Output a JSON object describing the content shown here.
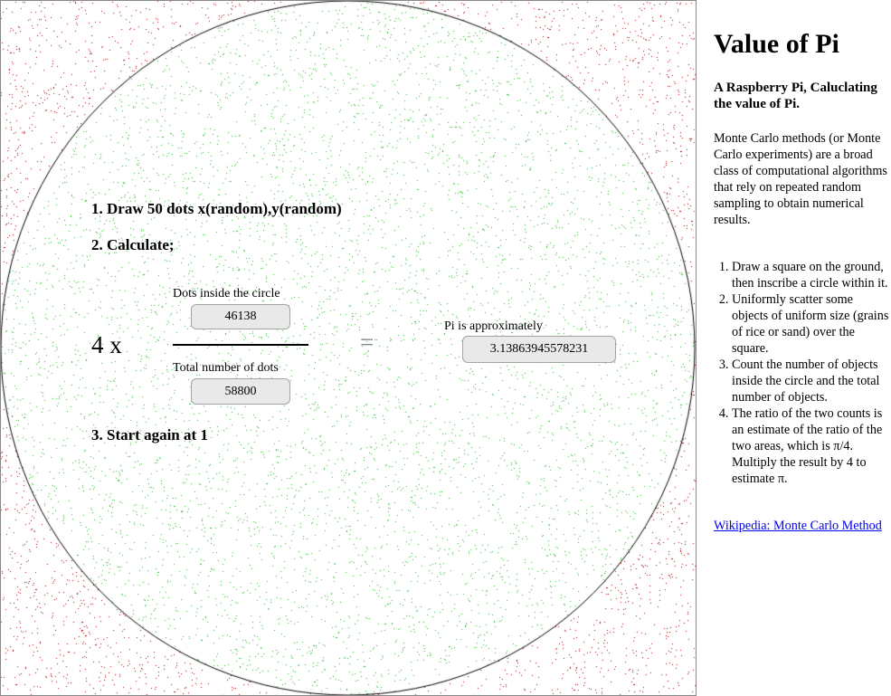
{
  "simulation": {
    "step1": "1. Draw 50 dots x(random),y(random)",
    "step2": "2. Calculate;",
    "step3": "3. Start again at 1",
    "multiplier_label": "4 x",
    "equals_label": "=",
    "dots_inside_label": "Dots inside the circle",
    "dots_inside_value": "46138",
    "total_dots_label": "Total number of dots",
    "total_dots_value": "58800",
    "pi_label": "Pi is approximately",
    "pi_value": "3.13863945578231",
    "colors": {
      "inside_dot": "#22bb22",
      "outside_dot": "#aa0000",
      "circle_outline": "#000000",
      "background": "#ffffff"
    }
  },
  "sidebar": {
    "title": "Value of Pi",
    "subtitle": "A Raspberry Pi, Caluclating the value of Pi.",
    "intro": "Monte Carlo methods (or Monte Carlo experiments) are a broad class of computational algorithms that rely on repeated random sampling to obtain numerical results.",
    "steps": [
      "Draw a square on the ground, then inscribe a circle within it.",
      "Uniformly scatter some objects of uniform size (grains of rice or sand) over the square.",
      "Count the number of objects inside the circle and the total number of objects.",
      "The ratio of the two counts is an estimate of the ratio of the two areas, which is π/4. Multiply the result by 4 to estimate π."
    ],
    "link_text": "Wikipedia: Monte Carlo Method"
  }
}
